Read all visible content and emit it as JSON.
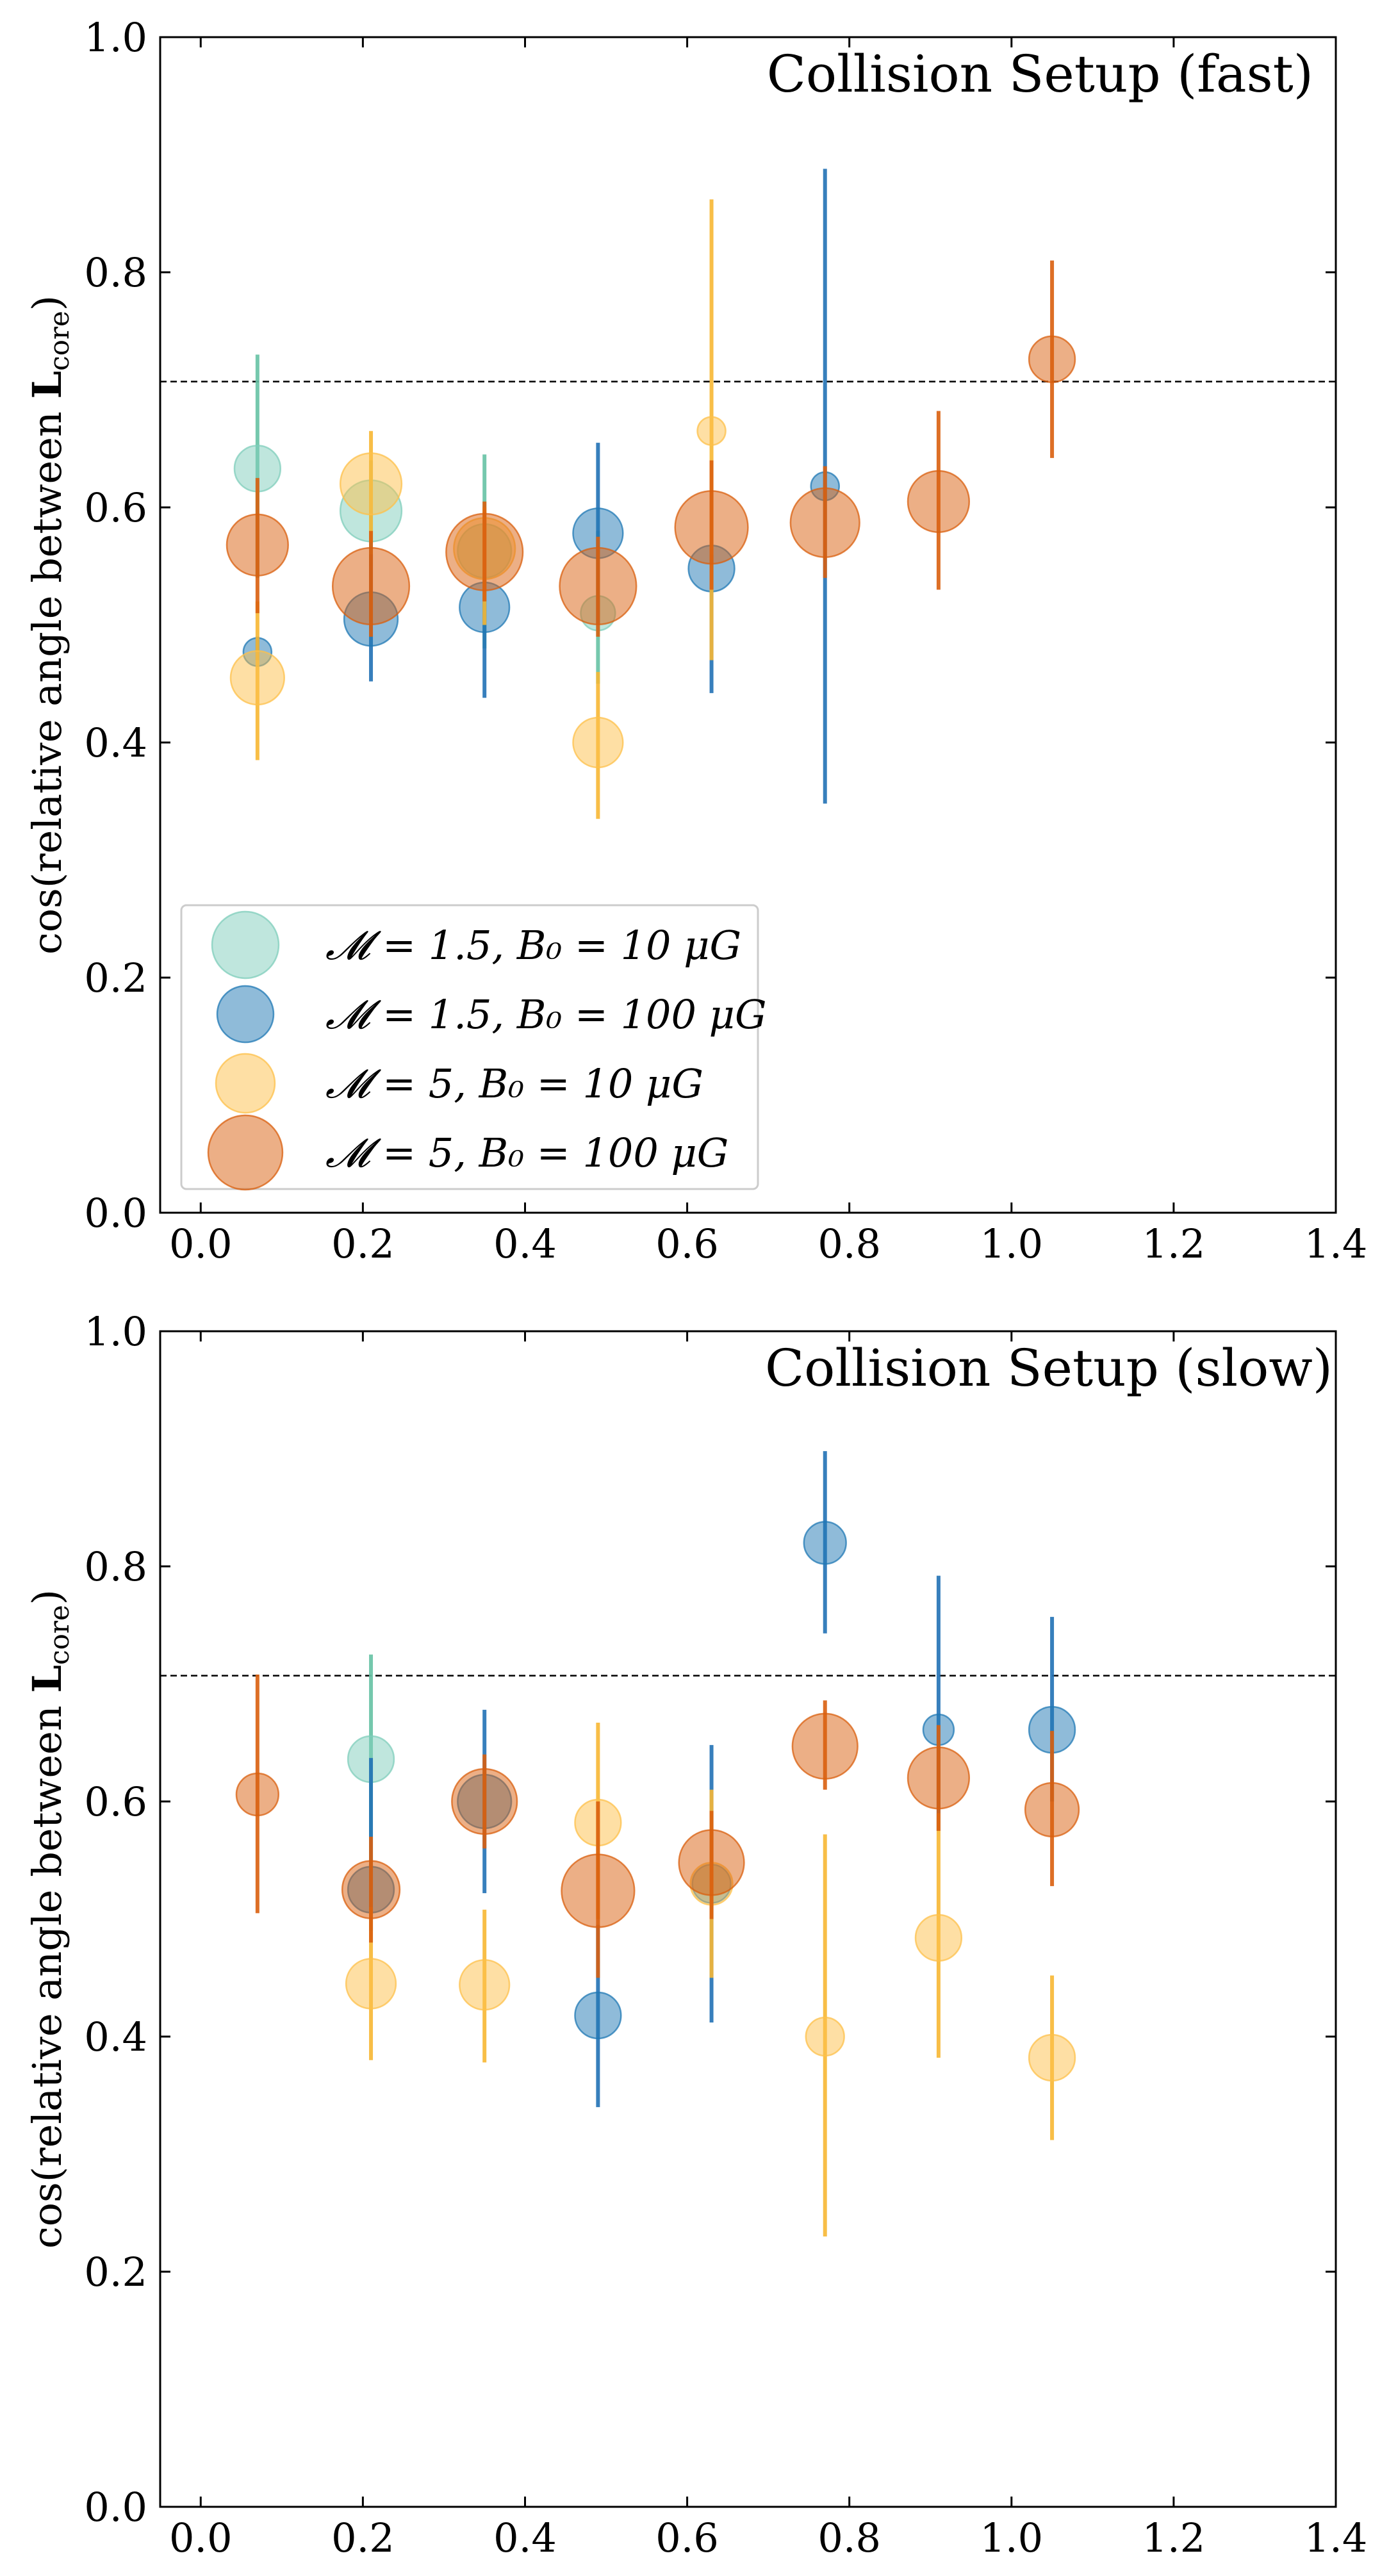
{
  "colors": {
    "m15_b10": "#7fcdbb",
    "m15_b100": "#1f78b4",
    "m5_b10": "#fdc04a",
    "m5_b100": "#d95f0e",
    "m15_b10_err": "#66c2a4",
    "m15_b100_err": "#2171b5",
    "m5_b10_err": "#f7b733",
    "m5_b100_err": "#d95f0e"
  },
  "y_axis_label": {
    "prefix": "cos(relative angle between ",
    "bold": "L",
    "subscript": "core",
    "suffix": ")"
  },
  "legend": [
    {
      "key": "m15_b10",
      "label": "𝓜 = 1.5, B₀ = 10 μG"
    },
    {
      "key": "m15_b100",
      "label": "𝓜 = 1.5, B₀ = 100 μG"
    },
    {
      "key": "m5_b10",
      "label": "𝓜 = 5, B₀ = 10 μG"
    },
    {
      "key": "m5_b100",
      "label": "𝓜 = 5, B₀ = 100 μG"
    }
  ],
  "chart_data": [
    {
      "type": "scatter",
      "title": "Collision Setup (fast)",
      "xlim": [
        -0.05,
        1.4
      ],
      "ylim": [
        0.0,
        1.0
      ],
      "xticks": [
        "0.0",
        "0.2",
        "0.4",
        "0.6",
        "0.8",
        "1.0",
        "1.2",
        "1.4"
      ],
      "yticks": [
        "0.0",
        "0.2",
        "0.4",
        "0.6",
        "0.8",
        "1.0"
      ],
      "reference_line_y": 0.707,
      "series": [
        {
          "key": "m15_b10",
          "name": "𝓜 = 1.5, B₀ = 10 μG",
          "points": [
            {
              "x": 0.07,
              "y": 0.633,
              "lo": 0.54,
              "hi": 0.73,
              "size": 0.6
            },
            {
              "x": 0.21,
              "y": 0.597,
              "lo": 0.55,
              "hi": 0.64,
              "size": 0.8
            },
            {
              "x": 0.35,
              "y": 0.563,
              "lo": 0.48,
              "hi": 0.645,
              "size": 0.7
            },
            {
              "x": 0.49,
              "y": 0.51,
              "lo": 0.45,
              "hi": 0.58,
              "size": 0.45
            }
          ]
        },
        {
          "key": "m15_b100",
          "name": "𝓜 = 1.5, B₀ = 100 μG",
          "points": [
            {
              "x": 0.07,
              "y": 0.477,
              "lo": 0.47,
              "hi": 0.49,
              "size": 0.35
            },
            {
              "x": 0.21,
              "y": 0.505,
              "lo": 0.452,
              "hi": 0.56,
              "size": 0.7
            },
            {
              "x": 0.35,
              "y": 0.515,
              "lo": 0.438,
              "hi": 0.59,
              "size": 0.65
            },
            {
              "x": 0.49,
              "y": 0.578,
              "lo": 0.5,
              "hi": 0.655,
              "size": 0.65
            },
            {
              "x": 0.63,
              "y": 0.548,
              "lo": 0.442,
              "hi": 0.56,
              "size": 0.6
            },
            {
              "x": 0.77,
              "y": 0.618,
              "lo": 0.348,
              "hi": 0.888,
              "size": 0.35
            }
          ]
        },
        {
          "key": "m5_b10",
          "name": "𝓜 = 5, B₀ = 10 μG",
          "points": [
            {
              "x": 0.07,
              "y": 0.455,
              "lo": 0.385,
              "hi": 0.52,
              "size": 0.7
            },
            {
              "x": 0.21,
              "y": 0.62,
              "lo": 0.57,
              "hi": 0.665,
              "size": 0.8
            },
            {
              "x": 0.35,
              "y": 0.565,
              "lo": 0.5,
              "hi": 0.6,
              "size": 0.8
            },
            {
              "x": 0.49,
              "y": 0.4,
              "lo": 0.335,
              "hi": 0.46,
              "size": 0.65
            },
            {
              "x": 0.63,
              "y": 0.665,
              "lo": 0.47,
              "hi": 0.862,
              "size": 0.35
            }
          ]
        },
        {
          "key": "m5_b100",
          "name": "𝓜 = 5, B₀ = 100 μG",
          "points": [
            {
              "x": 0.07,
              "y": 0.568,
              "lo": 0.51,
              "hi": 0.625,
              "size": 0.8
            },
            {
              "x": 0.21,
              "y": 0.533,
              "lo": 0.49,
              "hi": 0.58,
              "size": 1.0
            },
            {
              "x": 0.35,
              "y": 0.562,
              "lo": 0.52,
              "hi": 0.605,
              "size": 1.0
            },
            {
              "x": 0.49,
              "y": 0.533,
              "lo": 0.49,
              "hi": 0.575,
              "size": 1.0
            },
            {
              "x": 0.63,
              "y": 0.583,
              "lo": 0.53,
              "hi": 0.64,
              "size": 0.95
            },
            {
              "x": 0.77,
              "y": 0.587,
              "lo": 0.54,
              "hi": 0.635,
              "size": 0.9
            },
            {
              "x": 0.91,
              "y": 0.605,
              "lo": 0.53,
              "hi": 0.682,
              "size": 0.8
            },
            {
              "x": 1.05,
              "y": 0.726,
              "lo": 0.642,
              "hi": 0.81,
              "size": 0.6
            }
          ]
        }
      ]
    },
    {
      "type": "scatter",
      "title": "Collision Setup (slow)",
      "xlim": [
        -0.05,
        1.4
      ],
      "ylim": [
        0.0,
        1.0
      ],
      "xticks": [
        "0.0",
        "0.2",
        "0.4",
        "0.6",
        "0.8",
        "1.0",
        "1.2",
        "1.4"
      ],
      "yticks": [
        "0.0",
        "0.2",
        "0.4",
        "0.6",
        "0.8",
        "1.0"
      ],
      "reference_line_y": 0.707,
      "series": [
        {
          "key": "m15_b10",
          "name": "𝓜 = 1.5, B₀ = 10 μG",
          "points": [
            {
              "x": 0.21,
              "y": 0.636,
              "lo": 0.545,
              "hi": 0.725,
              "size": 0.6
            }
          ]
        },
        {
          "key": "m15_b100",
          "name": "𝓜 = 1.5, B₀ = 100 μG",
          "points": [
            {
              "x": 0.21,
              "y": 0.525,
              "lo": 0.49,
              "hi": 0.637,
              "size": 0.6
            },
            {
              "x": 0.35,
              "y": 0.6,
              "lo": 0.522,
              "hi": 0.678,
              "size": 0.7
            },
            {
              "x": 0.49,
              "y": 0.418,
              "lo": 0.34,
              "hi": 0.495,
              "size": 0.6
            },
            {
              "x": 0.63,
              "y": 0.53,
              "lo": 0.412,
              "hi": 0.648,
              "size": 0.5
            },
            {
              "x": 0.77,
              "y": 0.82,
              "lo": 0.743,
              "hi": 0.898,
              "size": 0.55
            },
            {
              "x": 0.91,
              "y": 0.661,
              "lo": 0.575,
              "hi": 0.792,
              "size": 0.4
            },
            {
              "x": 1.05,
              "y": 0.661,
              "lo": 0.6,
              "hi": 0.757,
              "size": 0.6
            }
          ]
        },
        {
          "key": "m5_b10",
          "name": "𝓜 = 5, B₀ = 10 μG",
          "points": [
            {
              "x": 0.21,
              "y": 0.445,
              "lo": 0.38,
              "hi": 0.51,
              "size": 0.65
            },
            {
              "x": 0.35,
              "y": 0.444,
              "lo": 0.378,
              "hi": 0.508,
              "size": 0.65
            },
            {
              "x": 0.49,
              "y": 0.582,
              "lo": 0.5,
              "hi": 0.667,
              "size": 0.6
            },
            {
              "x": 0.63,
              "y": 0.53,
              "lo": 0.45,
              "hi": 0.61,
              "size": 0.55
            },
            {
              "x": 0.77,
              "y": 0.4,
              "lo": 0.23,
              "hi": 0.572,
              "size": 0.5
            },
            {
              "x": 0.91,
              "y": 0.484,
              "lo": 0.382,
              "hi": 0.59,
              "size": 0.6
            },
            {
              "x": 1.05,
              "y": 0.382,
              "lo": 0.312,
              "hi": 0.452,
              "size": 0.6
            }
          ]
        },
        {
          "key": "m5_b100",
          "name": "𝓜 = 5, B₀ = 100 μG",
          "points": [
            {
              "x": 0.07,
              "y": 0.606,
              "lo": 0.505,
              "hi": 0.708,
              "size": 0.55
            },
            {
              "x": 0.21,
              "y": 0.525,
              "lo": 0.48,
              "hi": 0.57,
              "size": 0.75
            },
            {
              "x": 0.35,
              "y": 0.6,
              "lo": 0.56,
              "hi": 0.64,
              "size": 0.85
            },
            {
              "x": 0.49,
              "y": 0.524,
              "lo": 0.45,
              "hi": 0.6,
              "size": 0.95
            },
            {
              "x": 0.63,
              "y": 0.548,
              "lo": 0.5,
              "hi": 0.592,
              "size": 0.85
            },
            {
              "x": 0.77,
              "y": 0.647,
              "lo": 0.61,
              "hi": 0.686,
              "size": 0.85
            },
            {
              "x": 0.91,
              "y": 0.62,
              "lo": 0.575,
              "hi": 0.665,
              "size": 0.8
            },
            {
              "x": 1.05,
              "y": 0.593,
              "lo": 0.528,
              "hi": 0.66,
              "size": 0.7
            }
          ]
        }
      ]
    }
  ]
}
